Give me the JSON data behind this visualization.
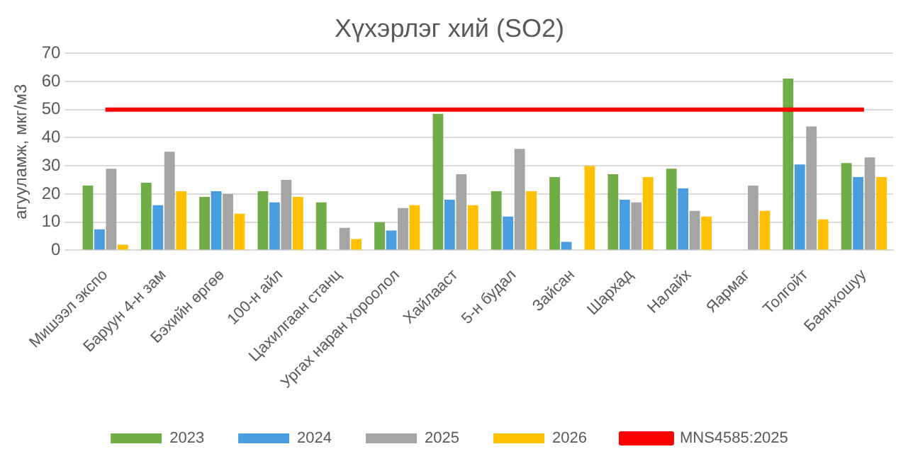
{
  "chart_data": {
    "type": "bar",
    "title": "Хүхэрлэг хий (SO2)",
    "ylabel": "агууламж, мкг/м3",
    "categories": [
      "Мишээл экспо",
      "Баруун 4-н зам",
      "Бэхийн өргөө",
      "100-н айл",
      "Цахилгаан станц",
      "Ургах наран хороолол",
      "Хайлааст",
      "5-н будал",
      "Зайсан",
      "Шархад",
      "Налайх",
      "Яармаг",
      "Толгойт",
      "Баянхошуу"
    ],
    "series": [
      {
        "name": "2023",
        "color": "#70ad47",
        "values": [
          23,
          24,
          19,
          21,
          17,
          10,
          48.5,
          21,
          26,
          27,
          29,
          null,
          61,
          31
        ]
      },
      {
        "name": "2024",
        "color": "#4a9ee0",
        "values": [
          7.5,
          16,
          21,
          17,
          null,
          7,
          18,
          12,
          3,
          18,
          22,
          null,
          30.5,
          26
        ]
      },
      {
        "name": "2025",
        "color": "#a5a5a5",
        "values": [
          29,
          35,
          20,
          25,
          8,
          15,
          27,
          36,
          null,
          17,
          14,
          23,
          44,
          33
        ]
      },
      {
        "name": "2026",
        "color": "#ffc000",
        "values": [
          2,
          21,
          13,
          19,
          4,
          16,
          16,
          21,
          30,
          26,
          12,
          14,
          11,
          26
        ]
      },
      {
        "name": "MNS4585:2025",
        "type": "line",
        "color": "#ff0000",
        "values": [
          50,
          50,
          50,
          50,
          50,
          50,
          50,
          50,
          50,
          50,
          50,
          50,
          50,
          50
        ]
      }
    ],
    "ylim": [
      0,
      70
    ],
    "yticks": [
      0,
      10,
      20,
      30,
      40,
      50,
      60,
      70
    ],
    "grid": "y",
    "legend": "bottom"
  }
}
